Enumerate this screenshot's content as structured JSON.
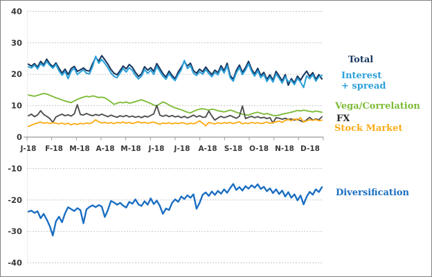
{
  "chart_data": {
    "type": "line",
    "title": "",
    "grid": "horizontal-dashed",
    "legend_position": "right",
    "x_axis": {
      "tick_labels": [
        "J-18",
        "F-18",
        "M-18",
        "A-18",
        "M-18",
        "J-18",
        "J-18",
        "A-18",
        "S-18",
        "O-18",
        "N-18",
        "D-18"
      ]
    },
    "y_axis": {
      "min": -40,
      "max": 40,
      "tick_interval": 10,
      "tick_labels": [
        "40",
        "30",
        "20",
        "10",
        "0",
        "-10",
        "-20",
        "-30",
        "-40"
      ]
    },
    "series": [
      {
        "name": "Total",
        "color": "#17375E",
        "values": [
          23.2,
          22.6,
          23.4,
          22.3,
          24.1,
          23.0,
          24.8,
          23.3,
          22.4,
          23.6,
          21.9,
          20.4,
          21.6,
          19.9,
          21.8,
          22.5,
          20.9,
          21.4,
          22.0,
          21.2,
          21.0,
          23.4,
          25.3,
          24.2,
          25.9,
          24.6,
          23.2,
          21.5,
          20.3,
          19.8,
          21.2,
          22.6,
          21.7,
          23.1,
          22.2,
          20.6,
          19.3,
          20.1,
          22.4,
          21.3,
          22.1,
          20.9,
          23.4,
          21.8,
          20.2,
          19.1,
          21.0,
          19.6,
          18.6,
          20.7,
          22.2,
          24.0,
          22.6,
          23.5,
          21.1,
          20.3,
          21.6,
          20.8,
          22.3,
          21.0,
          19.9,
          21.3,
          20.5,
          22.7,
          21.1,
          23.5,
          19.6,
          18.4,
          21.2,
          22.9,
          20.6,
          22.1,
          24.1,
          21.6,
          20.1,
          21.9,
          19.6,
          20.6,
          18.4,
          19.8,
          18.1,
          20.9,
          19.4,
          17.9,
          19.9,
          16.5,
          18.6,
          17.3,
          19.4,
          18.1,
          19.7,
          21.0,
          19.3,
          20.5,
          18.4,
          19.9,
          18.5
        ]
      },
      {
        "name": "Interest + spread",
        "color": "#2DA1DB",
        "values": [
          22.4,
          22.0,
          22.9,
          21.7,
          23.4,
          22.5,
          24.1,
          22.8,
          21.9,
          23.1,
          21.1,
          19.7,
          20.9,
          18.6,
          21.0,
          21.9,
          19.9,
          20.7,
          21.4,
          20.3,
          20.1,
          22.5,
          25.7,
          23.5,
          24.7,
          23.5,
          22.1,
          20.4,
          19.3,
          18.9,
          20.4,
          21.8,
          20.7,
          22.1,
          21.2,
          19.6,
          18.5,
          19.4,
          21.5,
          20.3,
          21.3,
          20.0,
          22.5,
          20.9,
          19.4,
          18.4,
          20.2,
          18.9,
          18.0,
          19.9,
          21.4,
          24.4,
          21.8,
          22.7,
          20.3,
          19.6,
          20.8,
          20.0,
          21.5,
          20.2,
          19.2,
          20.6,
          19.8,
          21.9,
          20.4,
          22.7,
          18.9,
          17.8,
          20.4,
          22.1,
          19.9,
          21.3,
          23.3,
          20.9,
          19.4,
          21.1,
          18.9,
          19.9,
          17.7,
          19.1,
          17.5,
          20.1,
          18.7,
          17.2,
          19.2,
          17.6,
          18.0,
          16.7,
          18.7,
          17.5,
          15.8,
          19.5,
          18.6,
          19.8,
          17.8,
          19.2,
          19.6
        ]
      },
      {
        "name": "Vega/Correlation",
        "color": "#7DBB38",
        "values": [
          13.4,
          13.2,
          13.0,
          13.3,
          13.6,
          13.9,
          13.7,
          13.3,
          12.9,
          12.5,
          12.2,
          11.8,
          11.5,
          11.2,
          11.0,
          11.5,
          12.0,
          12.4,
          12.7,
          13.0,
          12.8,
          13.1,
          12.9,
          12.6,
          12.7,
          12.5,
          11.9,
          11.2,
          10.4,
          10.8,
          11.1,
          10.9,
          11.2,
          10.8,
          11.0,
          11.3,
          11.6,
          11.9,
          11.5,
          11.1,
          10.7,
          10.2,
          9.9,
          10.6,
          11.2,
          10.8,
          10.2,
          9.7,
          9.3,
          9.0,
          8.7,
          8.3,
          7.9,
          7.7,
          8.2,
          8.6,
          8.9,
          9.0,
          8.8,
          8.6,
          8.9,
          8.7,
          8.4,
          8.2,
          8.0,
          8.3,
          8.6,
          8.3,
          7.9,
          7.6,
          7.3,
          7.1,
          7.0,
          7.4,
          7.7,
          7.9,
          7.6,
          7.3,
          7.5,
          7.2,
          6.9,
          6.8,
          7.0,
          7.3,
          7.5,
          7.7,
          7.9,
          8.2,
          8.5,
          8.3,
          8.6,
          8.4,
          8.2,
          8.0,
          8.3,
          8.1,
          7.9
        ]
      },
      {
        "name": "FX",
        "color": "#4D4D4D",
        "label_color": "#262626",
        "values": [
          6.8,
          7.3,
          6.5,
          7.1,
          8.4,
          7.2,
          6.6,
          5.9,
          4.7,
          6.4,
          6.9,
          7.3,
          6.8,
          7.1,
          6.7,
          7.4,
          10.3,
          7.2,
          7.0,
          7.5,
          7.1,
          6.8,
          7.2,
          6.9,
          7.3,
          6.9,
          6.5,
          7.0,
          6.6,
          6.3,
          6.8,
          6.5,
          6.9,
          6.4,
          6.7,
          6.3,
          6.6,
          6.2,
          6.7,
          6.4,
          6.9,
          7.4,
          10.1,
          7.0,
          6.6,
          7.0,
          6.5,
          6.9,
          6.4,
          6.7,
          6.2,
          6.6,
          6.1,
          6.5,
          7.0,
          6.4,
          6.8,
          6.3,
          6.4,
          8.3,
          6.7,
          5.4,
          6.1,
          6.6,
          6.2,
          6.5,
          6.9,
          6.4,
          6.0,
          6.6,
          9.9,
          5.9,
          6.3,
          6.6,
          6.2,
          6.5,
          6.1,
          6.3,
          5.9,
          6.2,
          4.5,
          6.2,
          6.0,
          5.7,
          6.0,
          5.6,
          5.8,
          5.4,
          5.7,
          5.2,
          4.8,
          5.5,
          6.3,
          5.4,
          5.8,
          5.5,
          6.5
        ]
      },
      {
        "name": "Stock Market",
        "color": "#FBAC18",
        "values": [
          3.4,
          3.8,
          4.2,
          4.5,
          4.8,
          4.4,
          4.6,
          4.3,
          4.6,
          4.4,
          4.2,
          4.5,
          4.1,
          4.4,
          3.9,
          4.3,
          4.0,
          4.4,
          4.2,
          4.5,
          4.3,
          4.7,
          5.5,
          4.9,
          4.5,
          4.7,
          4.4,
          4.6,
          4.3,
          4.7,
          4.5,
          4.8,
          4.4,
          4.7,
          4.3,
          4.6,
          4.9,
          4.5,
          4.7,
          4.4,
          4.6,
          4.8,
          4.4,
          4.1,
          4.5,
          4.3,
          4.6,
          4.2,
          4.5,
          4.3,
          4.6,
          4.4,
          4.1,
          4.5,
          4.2,
          4.6,
          5.2,
          4.4,
          3.6,
          4.7,
          4.4,
          4.2,
          4.6,
          4.3,
          4.6,
          4.4,
          4.7,
          4.3,
          4.6,
          4.9,
          4.2,
          4.5,
          4.3,
          4.7,
          4.4,
          4.6,
          4.3,
          4.5,
          4.8,
          4.4,
          4.6,
          4.9,
          5.1,
          4.7,
          5.3,
          5.6,
          5.2,
          5.8,
          5.4,
          6.2,
          4.8,
          5.2,
          5.5,
          5.3,
          5.6,
          5.2,
          5.4
        ]
      },
      {
        "name": "Diversification",
        "color": "#1B6EC2",
        "values": [
          -23.7,
          -23.4,
          -24.1,
          -23.6,
          -25.8,
          -24.4,
          -26.2,
          -28.3,
          -31.3,
          -26.8,
          -25.3,
          -27.1,
          -24.2,
          -22.3,
          -22.9,
          -23.5,
          -22.6,
          -23.2,
          -27.4,
          -23.0,
          -22.2,
          -21.7,
          -22.3,
          -21.6,
          -22.1,
          -25.4,
          -23.2,
          -20.3,
          -20.8,
          -21.5,
          -20.9,
          -21.8,
          -22.4,
          -20.6,
          -21.2,
          -19.8,
          -21.4,
          -21.9,
          -20.4,
          -21.5,
          -19.5,
          -21.3,
          -20.2,
          -21.9,
          -24.4,
          -22.7,
          -23.2,
          -20.9,
          -19.8,
          -20.6,
          -18.9,
          -19.7,
          -18.5,
          -19.3,
          -18.2,
          -22.8,
          -20.9,
          -18.3,
          -17.6,
          -18.7,
          -17.3,
          -18.4,
          -17.1,
          -18.0,
          -16.6,
          -17.7,
          -16.2,
          -14.9,
          -16.8,
          -15.9,
          -17.0,
          -15.6,
          -16.4,
          -15.3,
          -16.1,
          -15.0,
          -16.5,
          -15.8,
          -17.2,
          -16.3,
          -17.8,
          -16.6,
          -18.1,
          -17.0,
          -18.9,
          -17.5,
          -19.3,
          -18.2,
          -20.1,
          -18.6,
          -21.4,
          -19.0,
          -17.4,
          -18.3,
          -16.6,
          -17.5,
          -15.9
        ]
      }
    ]
  },
  "legend": {
    "total": "Total",
    "interest": "Interest\n+ spread",
    "vega": "Vega/Correlation",
    "fx": "FX",
    "stock": "Stock Market",
    "diversification": "Diversification"
  }
}
